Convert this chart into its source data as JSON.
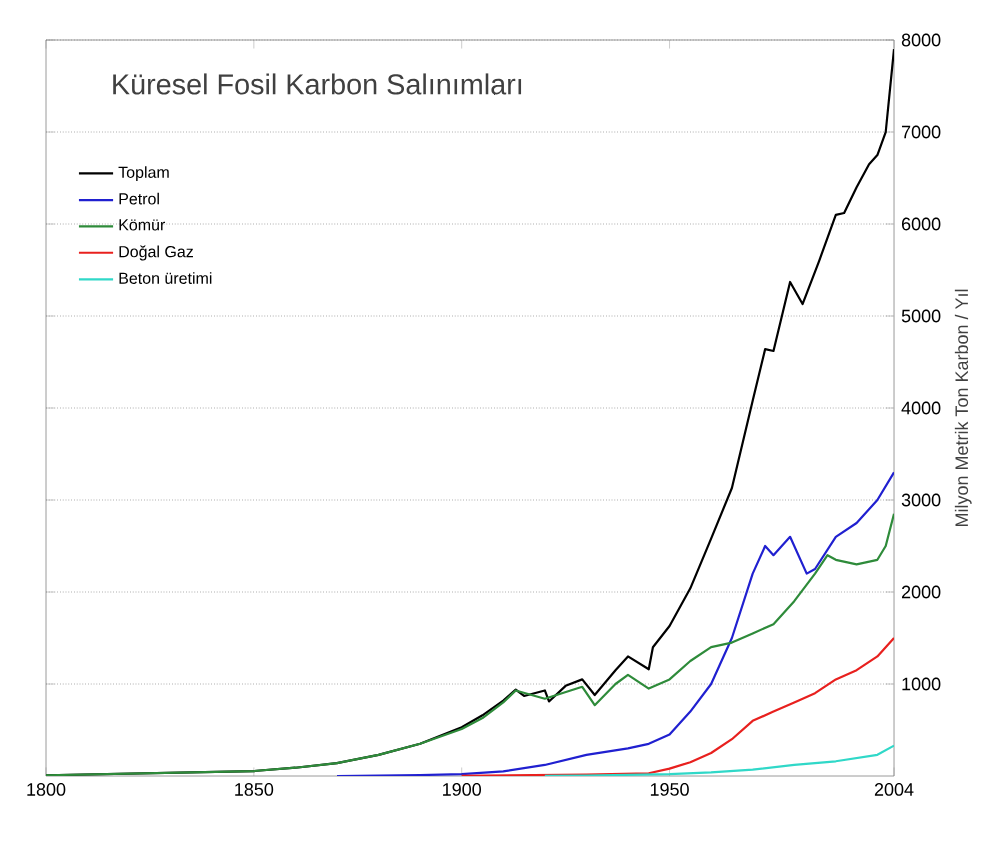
{
  "chart_data": {
    "type": "line",
    "title": "Küresel Fosil Karbon Salınımları",
    "ylabel": "Milyon Metrik Ton Karbon / Yıl",
    "xlim": [
      1800,
      2004
    ],
    "xticks": [
      1800,
      1850,
      1900,
      1950,
      2004
    ],
    "ylim": [
      0,
      8000
    ],
    "yticks": [
      1000,
      2000,
      3000,
      4000,
      5000,
      6000,
      7000,
      8000
    ],
    "grid": "y",
    "legend": "top left",
    "series": [
      {
        "name": "Toplam",
        "color": "#000000",
        "x": [
          1800,
          1850,
          1860,
          1870,
          1880,
          1890,
          1900,
          1905,
          1910,
          1913,
          1915,
          1920,
          1921,
          1925,
          1929,
          1932,
          1937,
          1940,
          1945,
          1946,
          1950,
          1955,
          1960,
          1965,
          1970,
          1973,
          1975,
          1979,
          1982,
          1986,
          1990,
          1992,
          1995,
          1998,
          2000,
          2002,
          2004
        ],
        "values": [
          8,
          54,
          90,
          140,
          230,
          350,
          530,
          660,
          820,
          940,
          870,
          930,
          810,
          980,
          1050,
          880,
          1150,
          1300,
          1160,
          1400,
          1630,
          2040,
          2580,
          3130,
          4080,
          4640,
          4620,
          5370,
          5130,
          5600,
          6100,
          6120,
          6400,
          6650,
          6750,
          7000,
          7900
        ]
      },
      {
        "name": "Petrol",
        "color": "#2020d0",
        "x": [
          1870,
          1890,
          1900,
          1910,
          1920,
          1930,
          1940,
          1945,
          1950,
          1955,
          1960,
          1965,
          1970,
          1973,
          1975,
          1979,
          1983,
          1985,
          1990,
          1995,
          2000,
          2004
        ],
        "values": [
          0,
          10,
          20,
          50,
          120,
          230,
          300,
          350,
          450,
          700,
          1000,
          1500,
          2200,
          2500,
          2400,
          2600,
          2200,
          2250,
          2600,
          2750,
          3000,
          3300
        ]
      },
      {
        "name": "Kömür",
        "color": "#2e8b3a",
        "x": [
          1800,
          1850,
          1860,
          1870,
          1880,
          1890,
          1900,
          1905,
          1910,
          1913,
          1920,
          1929,
          1932,
          1937,
          1940,
          1945,
          1950,
          1955,
          1960,
          1965,
          1970,
          1975,
          1980,
          1985,
          1988,
          1990,
          1995,
          2000,
          2002,
          2004
        ],
        "values": [
          8,
          54,
          90,
          140,
          230,
          350,
          510,
          630,
          800,
          930,
          840,
          970,
          770,
          1000,
          1100,
          950,
          1050,
          1250,
          1400,
          1450,
          1550,
          1650,
          1900,
          2200,
          2400,
          2350,
          2300,
          2350,
          2500,
          2850
        ]
      },
      {
        "name": "Doğal Gaz",
        "color": "#e8201e",
        "x": [
          1900,
          1930,
          1945,
          1950,
          1955,
          1960,
          1965,
          1970,
          1975,
          1980,
          1985,
          1990,
          1995,
          2000,
          2004
        ],
        "values": [
          3,
          15,
          30,
          80,
          150,
          250,
          400,
          600,
          700,
          800,
          900,
          1050,
          1150,
          1300,
          1500
        ]
      },
      {
        "name": "Beton üretimi",
        "color": "#30d8c8",
        "x": [
          1920,
          1930,
          1950,
          1960,
          1970,
          1980,
          1990,
          2000,
          2004
        ],
        "values": [
          3,
          5,
          20,
          40,
          70,
          120,
          160,
          230,
          330
        ]
      }
    ]
  }
}
